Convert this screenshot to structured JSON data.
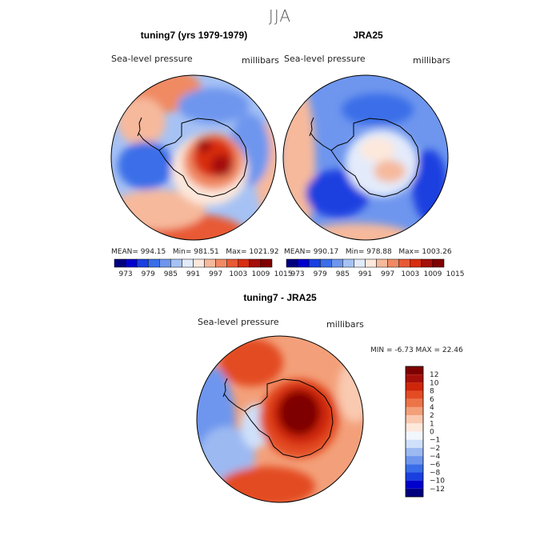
{
  "figure_title": "JJA",
  "panels": [
    {
      "title": "tuning7 (yrs 1979-1979)",
      "field_label": "Sea-level pressure",
      "units_label": "millibars",
      "stats": {
        "mean_label": "MEAN=",
        "mean": "994.15",
        "min_label": "Min=",
        "min": "981.51",
        "max_label": "Max=",
        "max": "1021.92"
      }
    },
    {
      "title": "JRA25",
      "field_label": "Sea-level pressure",
      "units_label": "millibars",
      "stats": {
        "mean_label": "MEAN=",
        "mean": "990.17",
        "min_label": "Min=",
        "min": "978.88",
        "max_label": "Max=",
        "max": "1003.26"
      }
    },
    {
      "title": "tuning7 - JRA25",
      "field_label": "Sea-level pressure",
      "units_label": "millibars",
      "stats_line": "MIN =   -6.73 MAX =   22.46"
    }
  ],
  "colors": {
    "abs_scale": [
      "#00007f",
      "#0000cd",
      "#1a3fe0",
      "#3a6ee8",
      "#6e96ee",
      "#a6c2f4",
      "#e3ebfb",
      "#fde8dc",
      "#f6b99c",
      "#f08a64",
      "#e85a36",
      "#d92d10",
      "#a50f0a",
      "#7f0000"
    ],
    "diff_scale": [
      "#00007f",
      "#0000cd",
      "#1a3fe0",
      "#3a6ee8",
      "#6e96ee",
      "#9cb9f2",
      "#cfe0fa",
      "#f2f6fd",
      "#fde8dc",
      "#f9c9b0",
      "#f3a07a",
      "#ec7449",
      "#e34b23",
      "#cf2508",
      "#a50f0a",
      "#7f0000"
    ]
  },
  "chart_data": [
    {
      "type": "heatmap",
      "title": "tuning7 (yrs 1979-1979)",
      "projection": "south polar stereographic",
      "variable": "Sea-level pressure",
      "units": "millibars",
      "levels": [
        973,
        976,
        979,
        982,
        985,
        988,
        991,
        994,
        997,
        1000,
        1003,
        1006,
        1009,
        1012,
        1015
      ],
      "colorbar_ticks": [
        "973",
        "979",
        "985",
        "991",
        "997",
        "1003",
        "1009",
        "1015"
      ],
      "mean": 994.15,
      "min": 981.51,
      "max": 1021.92
    },
    {
      "type": "heatmap",
      "title": "JRA25",
      "projection": "south polar stereographic",
      "variable": "Sea-level pressure",
      "units": "millibars",
      "levels": [
        973,
        976,
        979,
        982,
        985,
        988,
        991,
        994,
        997,
        1000,
        1003,
        1006,
        1009,
        1012,
        1015
      ],
      "colorbar_ticks": [
        "973",
        "979",
        "985",
        "991",
        "997",
        "1003",
        "1009",
        "1015"
      ],
      "mean": 990.17,
      "min": 978.88,
      "max": 1003.26
    },
    {
      "type": "heatmap",
      "title": "tuning7 - JRA25",
      "projection": "south polar stereographic",
      "variable": "Sea-level pressure",
      "units": "millibars",
      "colorbar_ticks": [
        "12",
        "10",
        "8",
        "6",
        "4",
        "2",
        "1",
        "0",
        "−1",
        "−2",
        "−4",
        "−6",
        "−8",
        "−10",
        "−12"
      ],
      "min": -6.73,
      "max": 22.46
    }
  ]
}
